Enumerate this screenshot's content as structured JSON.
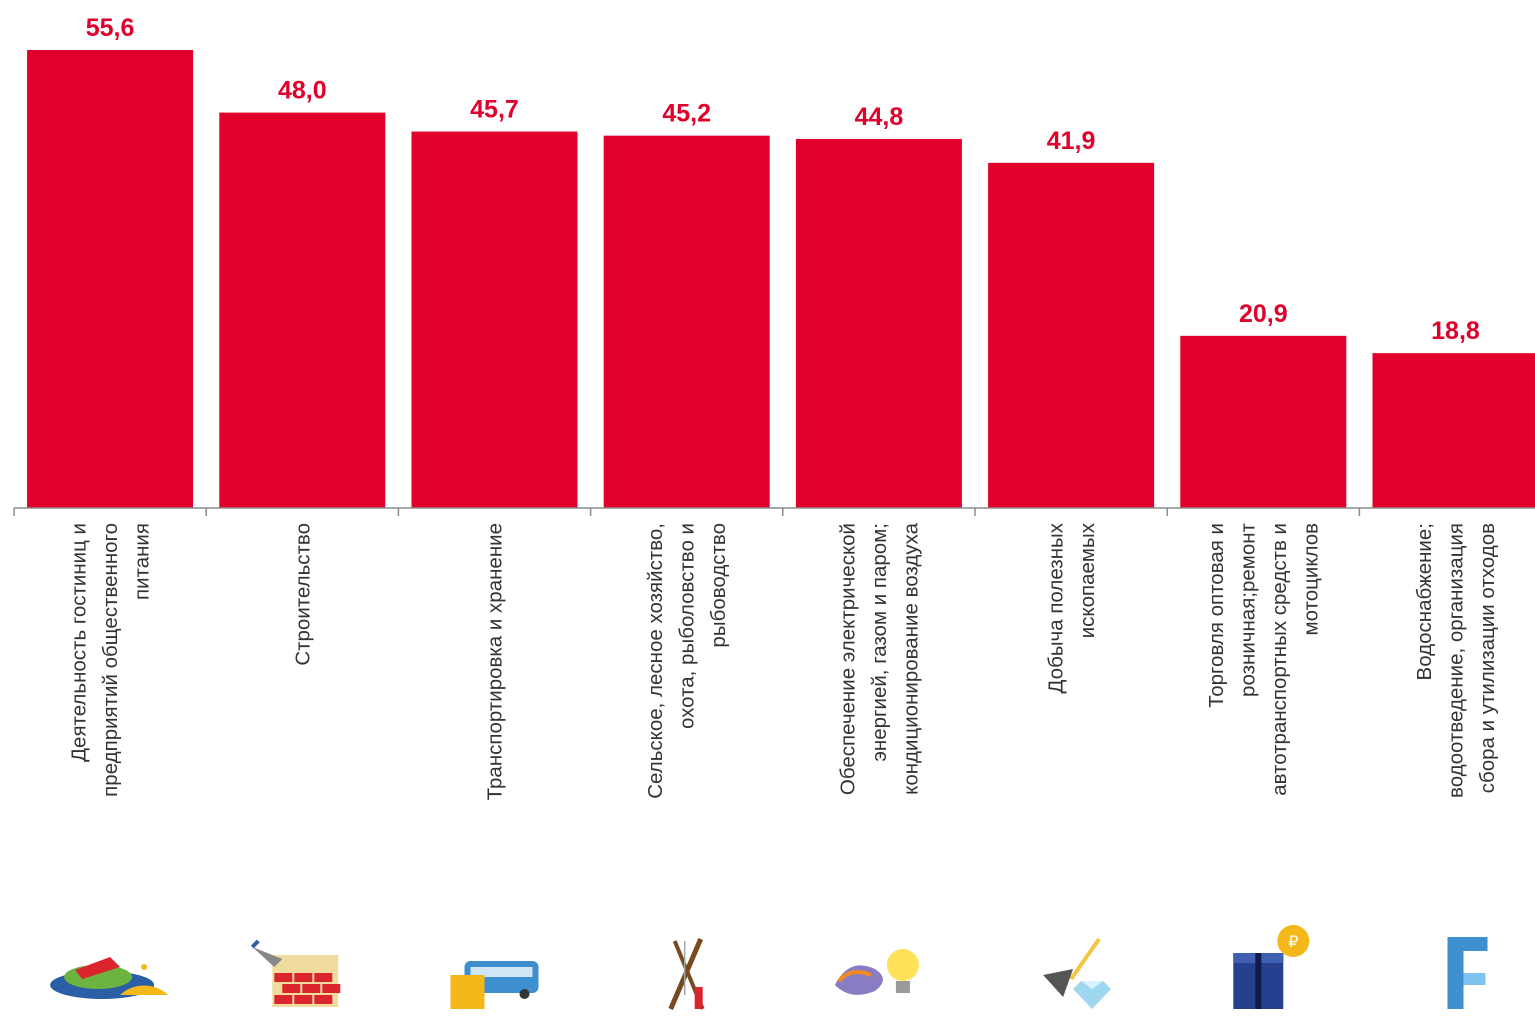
{
  "colors": {
    "bar": "#e0002b",
    "label": "#e0002b",
    "category_text": "#333333",
    "axis": "#8c8c8c"
  },
  "chart_data": {
    "type": "bar",
    "title": "",
    "xlabel": "",
    "ylabel": "",
    "ylim": [
      0,
      60
    ],
    "grid": false,
    "categories": [
      [
        "Деятельность гостиниц и",
        "предприятий общественного",
        "питания"
      ],
      [
        "Строительство"
      ],
      [
        "Транспортировка и хранение"
      ],
      [
        "Сельское, лесное хозяйство,",
        "охота, рыболовство и",
        "рыбоводство"
      ],
      [
        "Обеспечение электрической",
        "энергией, газом и паром;",
        "кондиционирование воздуха"
      ],
      [
        "Добыча полезных",
        "ископаемых"
      ],
      [
        "Торговля оптовая и",
        "розничная;ремонт",
        "автотранспортных средств и",
        "мотоциклов"
      ],
      [
        "Водоснабжение;",
        "водоотведение, организация",
        "сбора и утилизации отходов"
      ]
    ],
    "values": [
      55.6,
      48.0,
      45.7,
      45.2,
      44.8,
      41.9,
      20.9,
      18.8
    ],
    "value_labels": [
      "55,6",
      "48,0",
      "45,7",
      "45,2",
      "44,8",
      "41,9",
      "20,9",
      "18,8"
    ],
    "icons": [
      "food-plate-icon",
      "brick-wall-icon",
      "truck-bus-icon",
      "fishing-hunting-icon",
      "gas-lightbulb-icon",
      "shovel-diamond-icon",
      "store-coin-icon",
      "water-pipe-icon"
    ]
  }
}
